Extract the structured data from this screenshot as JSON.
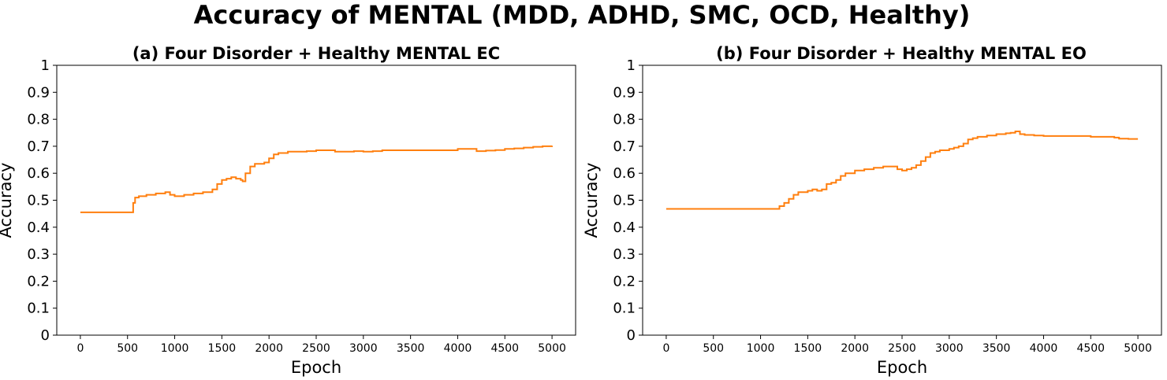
{
  "figure": {
    "title": "Accuracy of MENTAL (MDD, ADHD, SMC, OCD, Healthy)"
  },
  "chart_data": [
    {
      "type": "line",
      "title": "(a) Four Disorder + Healthy MENTAL EC",
      "xlabel": "Epoch",
      "ylabel": "Accuracy",
      "xlim": [
        -250,
        5250
      ],
      "ylim": [
        0,
        1
      ],
      "xticks": [
        0,
        500,
        1000,
        1500,
        2000,
        2500,
        3000,
        3500,
        4000,
        4500,
        5000
      ],
      "yticks": [
        0,
        0.1,
        0.2,
        0.3,
        0.4,
        0.5,
        0.6,
        0.7,
        0.8,
        0.9,
        1
      ],
      "ytick_labels": [
        "0",
        "0.1",
        "0.2",
        "0.3",
        "0.4",
        "0.5",
        "0.6",
        "0.7",
        "0.8",
        "0.9",
        "1"
      ],
      "grid": false,
      "color": "#ff7f0e",
      "series": [
        {
          "x": [
            0,
            540,
            560,
            580,
            620,
            700,
            800,
            900,
            950,
            1000,
            1100,
            1200,
            1300,
            1400,
            1450,
            1500,
            1550,
            1600,
            1650,
            1700,
            1720,
            1750,
            1800,
            1850,
            1900,
            1950,
            2000,
            2050,
            2100,
            2200,
            2300,
            2400,
            2500,
            2600,
            2700,
            2800,
            2900,
            3000,
            3100,
            3200,
            3300,
            3400,
            3500,
            3600,
            3700,
            3800,
            3900,
            4000,
            4100,
            4200,
            4300,
            4400,
            4500,
            4600,
            4700,
            4800,
            4900,
            5000
          ],
          "y": [
            0.455,
            0.455,
            0.49,
            0.51,
            0.515,
            0.52,
            0.525,
            0.53,
            0.52,
            0.515,
            0.52,
            0.525,
            0.53,
            0.54,
            0.56,
            0.575,
            0.58,
            0.585,
            0.58,
            0.575,
            0.57,
            0.6,
            0.625,
            0.635,
            0.635,
            0.64,
            0.655,
            0.67,
            0.675,
            0.68,
            0.68,
            0.682,
            0.685,
            0.685,
            0.68,
            0.68,
            0.682,
            0.68,
            0.682,
            0.685,
            0.685,
            0.685,
            0.685,
            0.685,
            0.685,
            0.685,
            0.685,
            0.69,
            0.69,
            0.682,
            0.684,
            0.686,
            0.69,
            0.692,
            0.695,
            0.698,
            0.7,
            0.702
          ]
        }
      ]
    },
    {
      "type": "line",
      "title": "(b) Four Disorder + Healthy MENTAL EO",
      "xlabel": "Epoch",
      "ylabel": "Accuracy",
      "xlim": [
        -250,
        5250
      ],
      "ylim": [
        0,
        1
      ],
      "xticks": [
        0,
        500,
        1000,
        1500,
        2000,
        2500,
        3000,
        3500,
        4000,
        4500,
        5000
      ],
      "yticks": [
        0,
        0.1,
        0.2,
        0.3,
        0.4,
        0.5,
        0.6,
        0.7,
        0.8,
        0.9,
        1
      ],
      "ytick_labels": [
        "0",
        "0.1",
        "0.2",
        "0.3",
        "0.4",
        "0.5",
        "0.6",
        "0.7",
        "0.8",
        "0.9",
        "1"
      ],
      "grid": false,
      "color": "#ff7f0e",
      "series": [
        {
          "x": [
            0,
            1150,
            1200,
            1250,
            1300,
            1350,
            1400,
            1500,
            1550,
            1600,
            1650,
            1700,
            1750,
            1800,
            1850,
            1900,
            2000,
            2100,
            2200,
            2300,
            2400,
            2450,
            2500,
            2550,
            2600,
            2650,
            2700,
            2750,
            2800,
            2850,
            2900,
            3000,
            3050,
            3100,
            3150,
            3200,
            3250,
            3300,
            3400,
            3500,
            3600,
            3650,
            3700,
            3750,
            3800,
            3900,
            4000,
            4100,
            4200,
            4300,
            4400,
            4500,
            4600,
            4700,
            4750,
            4800,
            4900,
            5000
          ],
          "y": [
            0.468,
            0.468,
            0.478,
            0.49,
            0.505,
            0.52,
            0.53,
            0.535,
            0.54,
            0.535,
            0.54,
            0.56,
            0.565,
            0.575,
            0.59,
            0.6,
            0.61,
            0.615,
            0.62,
            0.625,
            0.625,
            0.615,
            0.61,
            0.615,
            0.62,
            0.63,
            0.645,
            0.66,
            0.675,
            0.68,
            0.685,
            0.69,
            0.695,
            0.7,
            0.71,
            0.725,
            0.73,
            0.735,
            0.74,
            0.745,
            0.748,
            0.75,
            0.755,
            0.745,
            0.742,
            0.74,
            0.738,
            0.738,
            0.738,
            0.738,
            0.738,
            0.735,
            0.735,
            0.735,
            0.732,
            0.728,
            0.727,
            0.727
          ]
        }
      ]
    }
  ]
}
